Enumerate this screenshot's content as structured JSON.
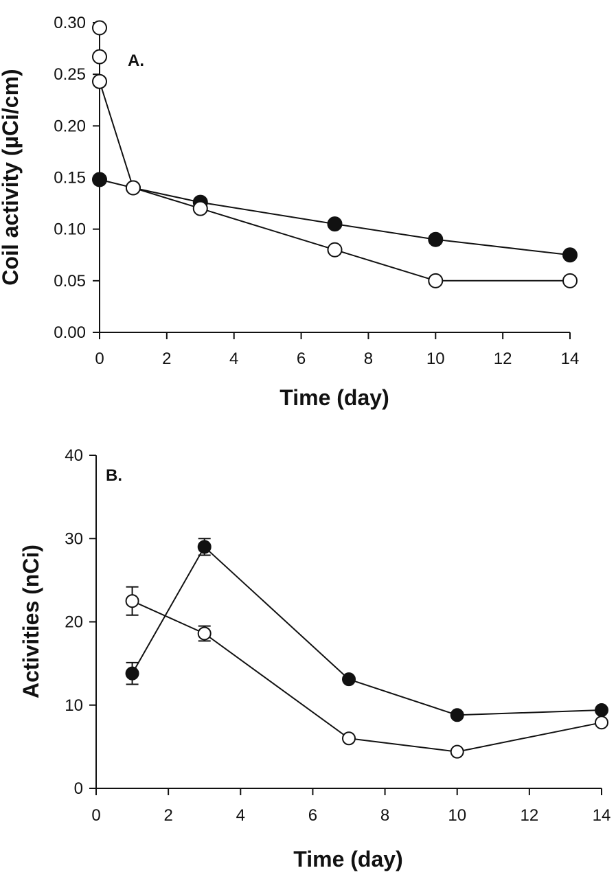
{
  "chart_data": [
    {
      "type": "line",
      "panel_label": "A.",
      "xlabel": "Time (day)",
      "ylabel": "Coil activity (µCi/cm)",
      "xlim": [
        0,
        14
      ],
      "ylim": [
        0,
        0.3
      ],
      "xticks": [
        "0",
        "2",
        "4",
        "6",
        "8",
        "10",
        "12",
        "14"
      ],
      "yticks": [
        "0.00",
        "0.05",
        "0.10",
        "0.15",
        "0.20",
        "0.25",
        "0.30"
      ],
      "grid": false,
      "series": [
        {
          "marker": "filled-circle",
          "color": "#111111",
          "x": [
            0,
            1,
            3,
            7,
            10,
            14
          ],
          "y": [
            0.148,
            0.14,
            0.126,
            0.105,
            0.09,
            0.075
          ]
        },
        {
          "marker": "open-circle",
          "color": "#111111",
          "x": [
            0,
            0,
            0,
            1,
            3,
            7,
            10,
            14
          ],
          "y": [
            0.295,
            0.267,
            0.243,
            0.14,
            0.12,
            0.08,
            0.05,
            0.05
          ],
          "line_order": [
            2,
            3,
            4,
            5,
            6,
            7
          ]
        }
      ]
    },
    {
      "type": "line",
      "panel_label": "B.",
      "xlabel": "Time (day)",
      "ylabel": "Activities (nCi)",
      "xlim": [
        0,
        14
      ],
      "ylim": [
        0,
        40
      ],
      "xticks": [
        "0",
        "2",
        "4",
        "6",
        "8",
        "10",
        "12",
        "14"
      ],
      "yticks": [
        "0",
        "10",
        "20",
        "30",
        "40"
      ],
      "grid": false,
      "series": [
        {
          "marker": "filled-circle",
          "color": "#111111",
          "x": [
            1,
            3,
            7,
            10,
            14
          ],
          "y": [
            13.8,
            29.0,
            13.1,
            8.8,
            9.4
          ],
          "err": [
            1.3,
            1.0,
            0,
            0,
            0
          ]
        },
        {
          "marker": "open-circle",
          "color": "#111111",
          "x": [
            1,
            3,
            7,
            10,
            14
          ],
          "y": [
            22.5,
            18.6,
            6.0,
            4.4,
            7.9
          ],
          "err": [
            1.7,
            0.9,
            0,
            0,
            0
          ]
        }
      ]
    }
  ]
}
